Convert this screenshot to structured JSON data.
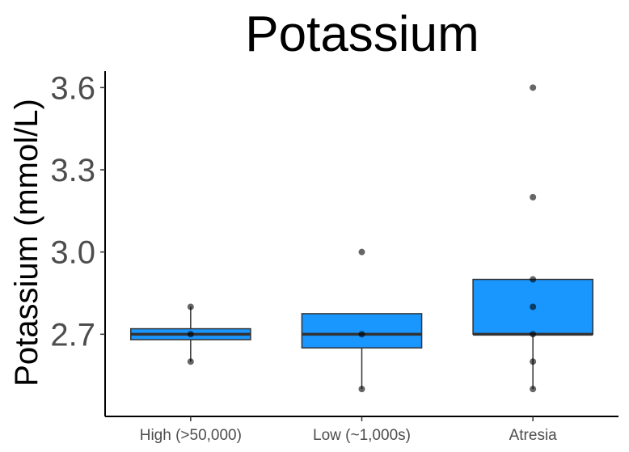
{
  "chart_data": {
    "type": "box",
    "title": "Potassium",
    "xlabel": "",
    "ylabel": "Potassium (mmol/L)",
    "ylim": [
      2.4,
      3.66
    ],
    "yticks": [
      2.7,
      3.0,
      3.3,
      3.6
    ],
    "ytick_labels": [
      "2.7",
      "3.0",
      "3.3",
      "3.6"
    ],
    "categories": [
      "High (>50,000)",
      "Low (~1,000s)",
      "Atresia"
    ],
    "grid": false,
    "legend": "none",
    "colors": {
      "box_fill": "#1a96ff",
      "outline": "#333333",
      "point": "#000000",
      "axis": "#000000"
    },
    "boxes": [
      {
        "category": "High (>50,000)",
        "min": 2.6,
        "q1": 2.68,
        "median": 2.7,
        "q3": 2.72,
        "max": 2.8
      },
      {
        "category": "Low (~1,000s)",
        "min": 2.5,
        "q1": 2.65,
        "median": 2.7,
        "q3": 2.775,
        "max": 2.775
      },
      {
        "category": "Atresia",
        "min": 2.5,
        "q1": 2.7,
        "median": 2.7,
        "q3": 2.9,
        "max": 2.9
      }
    ],
    "points": [
      {
        "category": "High (>50,000)",
        "values": [
          2.8,
          2.7,
          2.6
        ]
      },
      {
        "category": "Low (~1,000s)",
        "values": [
          3.0,
          2.7,
          2.5
        ]
      },
      {
        "category": "Atresia",
        "values": [
          3.6,
          3.2,
          2.9,
          2.8,
          2.7,
          2.6,
          2.5
        ]
      }
    ]
  }
}
